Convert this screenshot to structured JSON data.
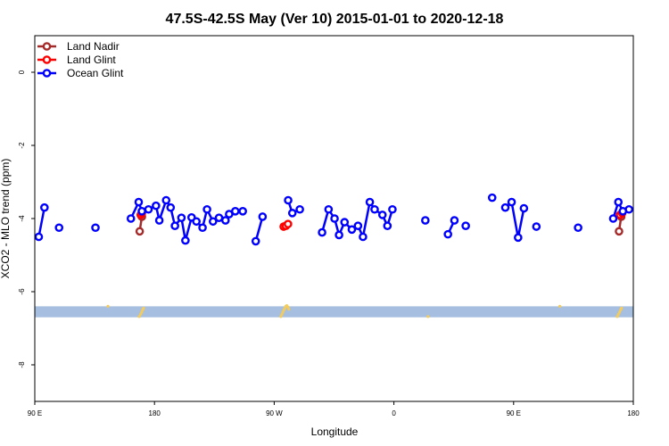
{
  "chart_data": {
    "type": "line",
    "title": "47.5S-42.5S May (Ver 10)   2015-01-01 to 2020-12-18",
    "xlabel": "Longitude",
    "ylabel": "XCO2 - MLO trend (ppm)",
    "xlim": [
      90,
      450
    ],
    "ylim": [
      -9,
      1
    ],
    "x_ticks": [
      {
        "value": 90,
        "label": "90 E"
      },
      {
        "value": 162,
        "label": "180"
      },
      {
        "value": 234,
        "label": "90 W"
      },
      {
        "value": 306,
        "label": "0"
      },
      {
        "value": 378,
        "label": "90 E"
      },
      {
        "value": 450,
        "label": "180"
      }
    ],
    "y_ticks": [
      {
        "value": 0,
        "label": "0"
      },
      {
        "value": -2,
        "label": "-2"
      },
      {
        "value": -4,
        "label": "-4"
      },
      {
        "value": -6,
        "label": "-6"
      },
      {
        "value": -8,
        "label": "-8"
      }
    ],
    "legend": {
      "placement": "top-left",
      "entries": [
        {
          "name": "Land Nadir",
          "color": "#a52a2a"
        },
        {
          "name": "Land Glint",
          "color": "#ff0000"
        },
        {
          "name": "Ocean Glint",
          "color": "#0000ff"
        }
      ]
    },
    "series": [
      {
        "name": "Land Nadir",
        "color": "#a52a2a",
        "segments": [
          [
            [
              153.1,
              -4.35
            ],
            [
              154.4,
              -3.95
            ]
          ],
          [
            [
              441.4,
              -4.35
            ],
            [
              442.7,
              -3.95
            ]
          ]
        ]
      },
      {
        "name": "Land Glint",
        "color": "#ff0000",
        "segments": [
          [
            [
              153.7,
              -3.9
            ],
            [
              154.4,
              -3.85
            ]
          ],
          [
            [
              239.7,
              -4.22
            ],
            [
              241.0,
              -4.2
            ],
            [
              242.3,
              -4.15
            ]
          ],
          [
            [
              442.0,
              -3.9
            ],
            [
              443.3,
              -3.85
            ]
          ]
        ]
      },
      {
        "name": "Ocean Glint",
        "color": "#0000ff",
        "segments": [
          [
            [
              92.4,
              -4.5
            ],
            [
              95.8,
              -3.7
            ]
          ],
          [
            [
              104.6,
              -4.25
            ]
          ],
          [
            [
              126.5,
              -4.25
            ]
          ],
          [
            [
              147.8,
              -4.0
            ],
            [
              152.5,
              -3.55
            ],
            [
              154.4,
              -3.8
            ],
            [
              158.4,
              -3.75
            ],
            [
              162.9,
              -3.65
            ],
            [
              164.9,
              -4.05
            ],
            [
              169.0,
              -3.5
            ],
            [
              171.7,
              -3.7
            ],
            [
              174.3,
              -4.2
            ],
            [
              178.2,
              -3.98
            ],
            [
              180.6,
              -4.6
            ],
            [
              184.3,
              -3.97
            ],
            [
              187.2,
              -4.08
            ],
            [
              190.9,
              -4.25
            ],
            [
              193.6,
              -3.75
            ],
            [
              197.2,
              -4.08
            ],
            [
              200.8,
              -3.98
            ],
            [
              204.7,
              -4.05
            ],
            [
              206.9,
              -3.88
            ],
            [
              210.6,
              -3.8
            ],
            [
              215.1,
              -3.8
            ]
          ],
          [
            [
              222.9,
              -4.62
            ],
            [
              227.0,
              -3.95
            ]
          ],
          [
            [
              242.4,
              -3.5
            ],
            [
              244.9,
              -3.85
            ],
            [
              249.4,
              -3.75
            ]
          ],
          [
            [
              262.8,
              -4.38
            ],
            [
              266.7,
              -3.75
            ],
            [
              270.3,
              -4.0
            ],
            [
              273.0,
              -4.45
            ],
            [
              276.3,
              -4.1
            ],
            [
              280.7,
              -4.3
            ],
            [
              284.4,
              -4.2
            ],
            [
              287.4,
              -4.5
            ],
            [
              291.5,
              -3.55
            ],
            [
              294.4,
              -3.75
            ],
            [
              299.1,
              -3.9
            ],
            [
              302.1,
              -4.2
            ],
            [
              305.1,
              -3.75
            ]
          ],
          [
            [
              324.9,
              -4.05
            ]
          ],
          [
            [
              338.5,
              -4.43
            ],
            [
              342.4,
              -4.05
            ]
          ],
          [
            [
              349.2,
              -4.2
            ]
          ],
          [
            [
              365.1,
              -3.43
            ]
          ],
          [
            [
              373.0,
              -3.7
            ],
            [
              376.8,
              -3.55
            ],
            [
              380.7,
              -4.52
            ],
            [
              384.2,
              -3.72
            ]
          ],
          [
            [
              391.7,
              -4.22
            ]
          ],
          [
            [
              416.8,
              -4.25
            ]
          ],
          [
            [
              437.9,
              -4.0
            ],
            [
              441.0,
              -3.55
            ],
            [
              443.7,
              -3.8
            ],
            [
              447.4,
              -3.75
            ]
          ]
        ]
      }
    ],
    "band": {
      "y_from": -6.7,
      "y_to": -6.4,
      "color": "#a6bfe0"
    },
    "band_markers": {
      "color": "#f5cc5a",
      "points": [
        [
          134.0,
          -6.4
        ],
        [
          152.8,
          -6.68
        ],
        [
          153.6,
          -6.62
        ],
        [
          154.3,
          -6.56
        ],
        [
          154.9,
          -6.5
        ],
        [
          155.4,
          -6.45
        ],
        [
          238.0,
          -6.68
        ],
        [
          238.6,
          -6.62
        ],
        [
          239.2,
          -6.56
        ],
        [
          239.8,
          -6.5
        ],
        [
          240.4,
          -6.45
        ],
        [
          241.0,
          -6.4
        ],
        [
          241.6,
          -6.38
        ],
        [
          242.3,
          -6.42
        ],
        [
          242.8,
          -6.48
        ],
        [
          326.5,
          -6.68
        ],
        [
          405.8,
          -6.4
        ],
        [
          440.3,
          -6.68
        ],
        [
          441.0,
          -6.62
        ],
        [
          441.7,
          -6.56
        ],
        [
          442.3,
          -6.5
        ],
        [
          442.9,
          -6.45
        ]
      ]
    }
  }
}
